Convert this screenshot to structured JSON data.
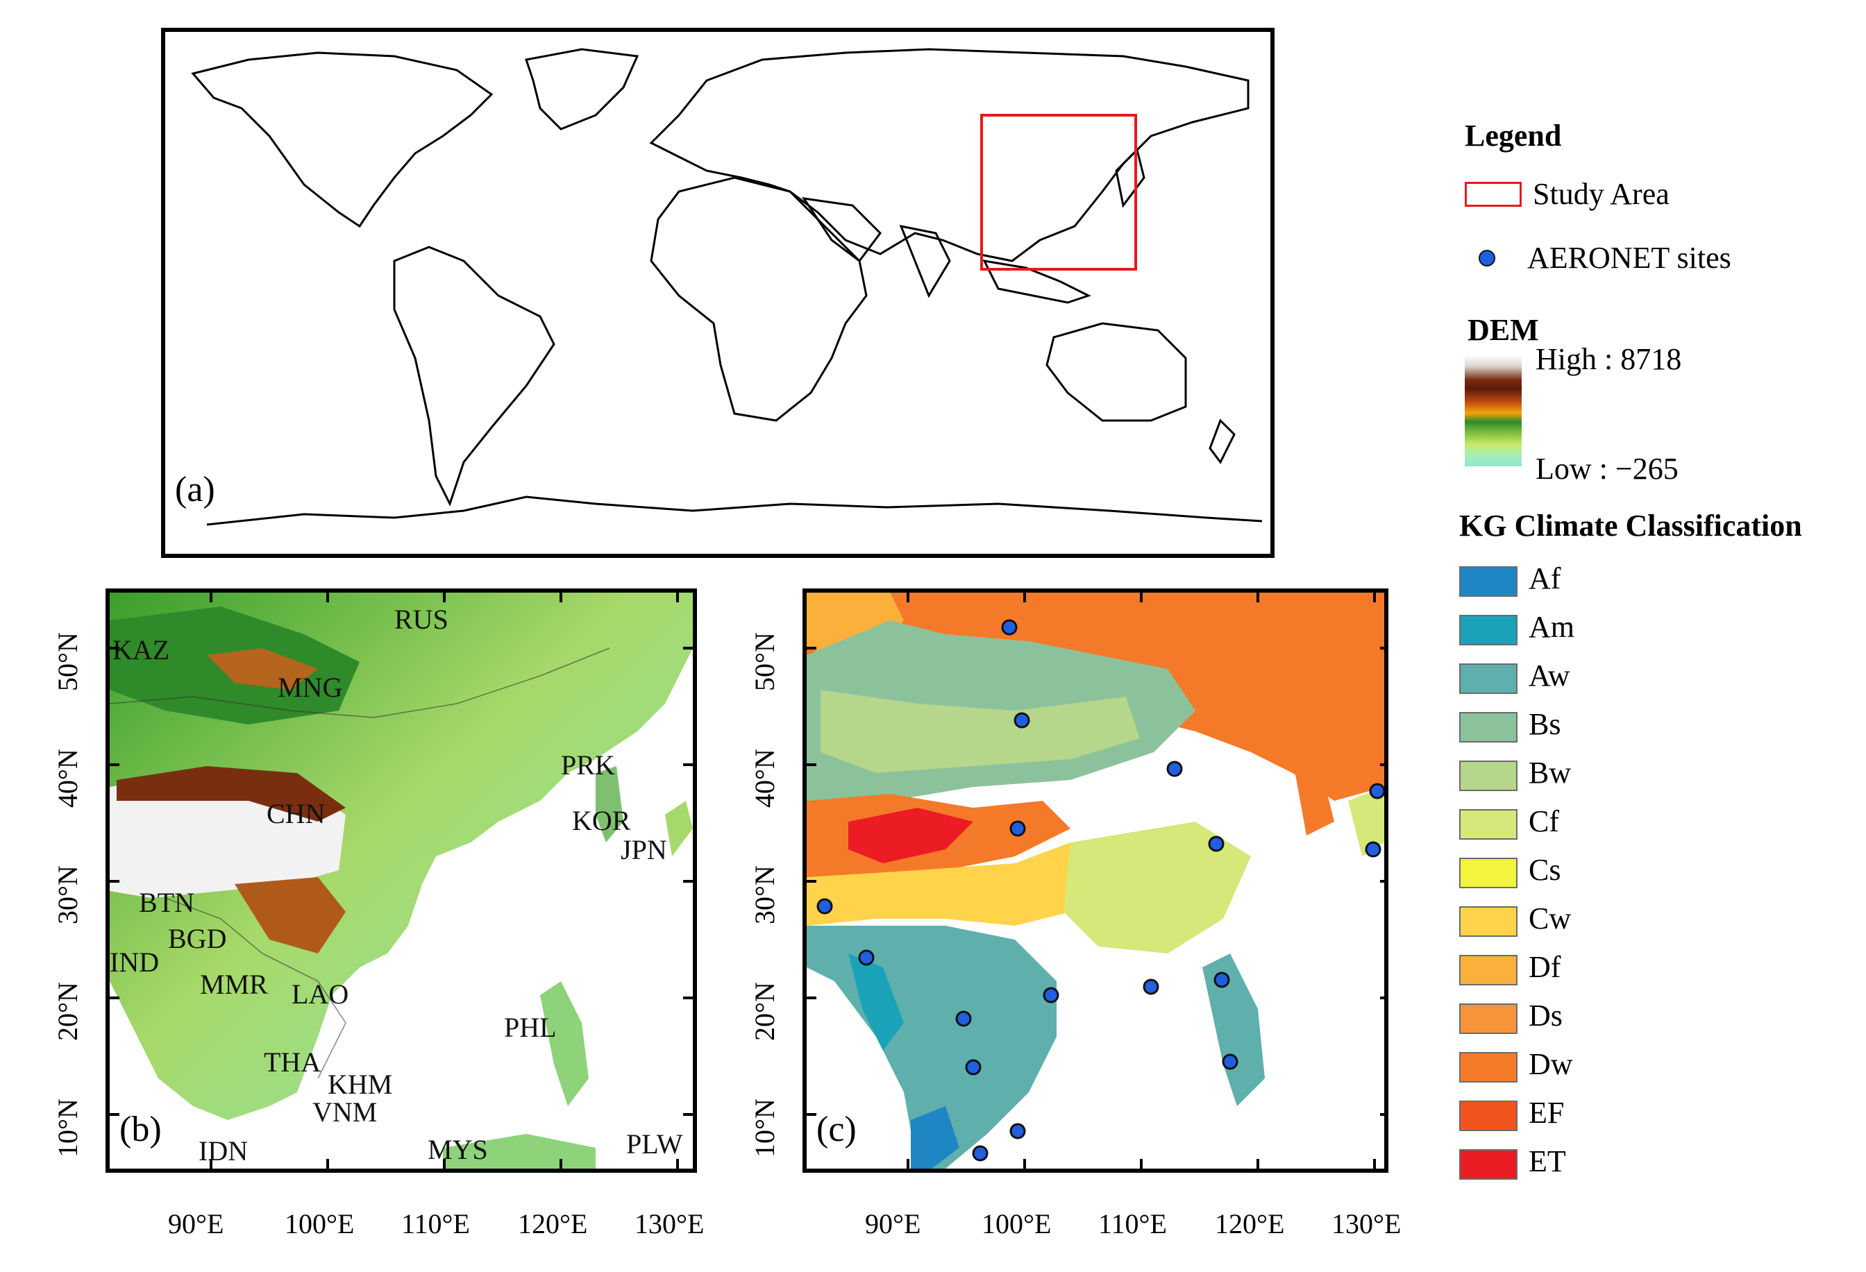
{
  "panels": {
    "a": {
      "label": "(a)"
    },
    "b": {
      "label": "(b)"
    },
    "c": {
      "label": "(c)"
    }
  },
  "country_labels": [
    "KAZ",
    "RUS",
    "MNG",
    "CHN",
    "PRK",
    "KOR",
    "JPN",
    "BTN",
    "BGD",
    "IND",
    "MMR",
    "LAO",
    "THA",
    "KHM",
    "VNM",
    "PHL",
    "IDN",
    "MYS",
    "PLW"
  ],
  "axes": {
    "lon_ticks": [
      "90°E",
      "100°E",
      "110°E",
      "120°E",
      "130°E"
    ],
    "lat_ticks": [
      "50°N",
      "40°N",
      "30°N",
      "20°N",
      "10°N"
    ]
  },
  "legend": {
    "title": "Legend",
    "study_area": "Study Area",
    "aeronet": "AERONET sites",
    "dem_title": "DEM",
    "dem_high": "High : 8718",
    "dem_low": "Low : −265",
    "kg_title": "KG Climate Classification",
    "kg_classes": [
      {
        "code": "Af",
        "color": "#1f86c4"
      },
      {
        "code": "Am",
        "color": "#1aa3b8"
      },
      {
        "code": "Aw",
        "color": "#5fb0ad"
      },
      {
        "code": "Bs",
        "color": "#8cc29b"
      },
      {
        "code": "Bw",
        "color": "#b5d68b"
      },
      {
        "code": "Cf",
        "color": "#d6e87a"
      },
      {
        "code": "Cs",
        "color": "#f3f43c"
      },
      {
        "code": "Cw",
        "color": "#ffd44a"
      },
      {
        "code": "Df",
        "color": "#fbb03b"
      },
      {
        "code": "Ds",
        "color": "#f7943a"
      },
      {
        "code": "Dw",
        "color": "#f47a29"
      },
      {
        "code": "EF",
        "color": "#f2541e"
      },
      {
        "code": "ET",
        "color": "#ec1c24"
      }
    ]
  },
  "aeronet_sites_count": 17
}
